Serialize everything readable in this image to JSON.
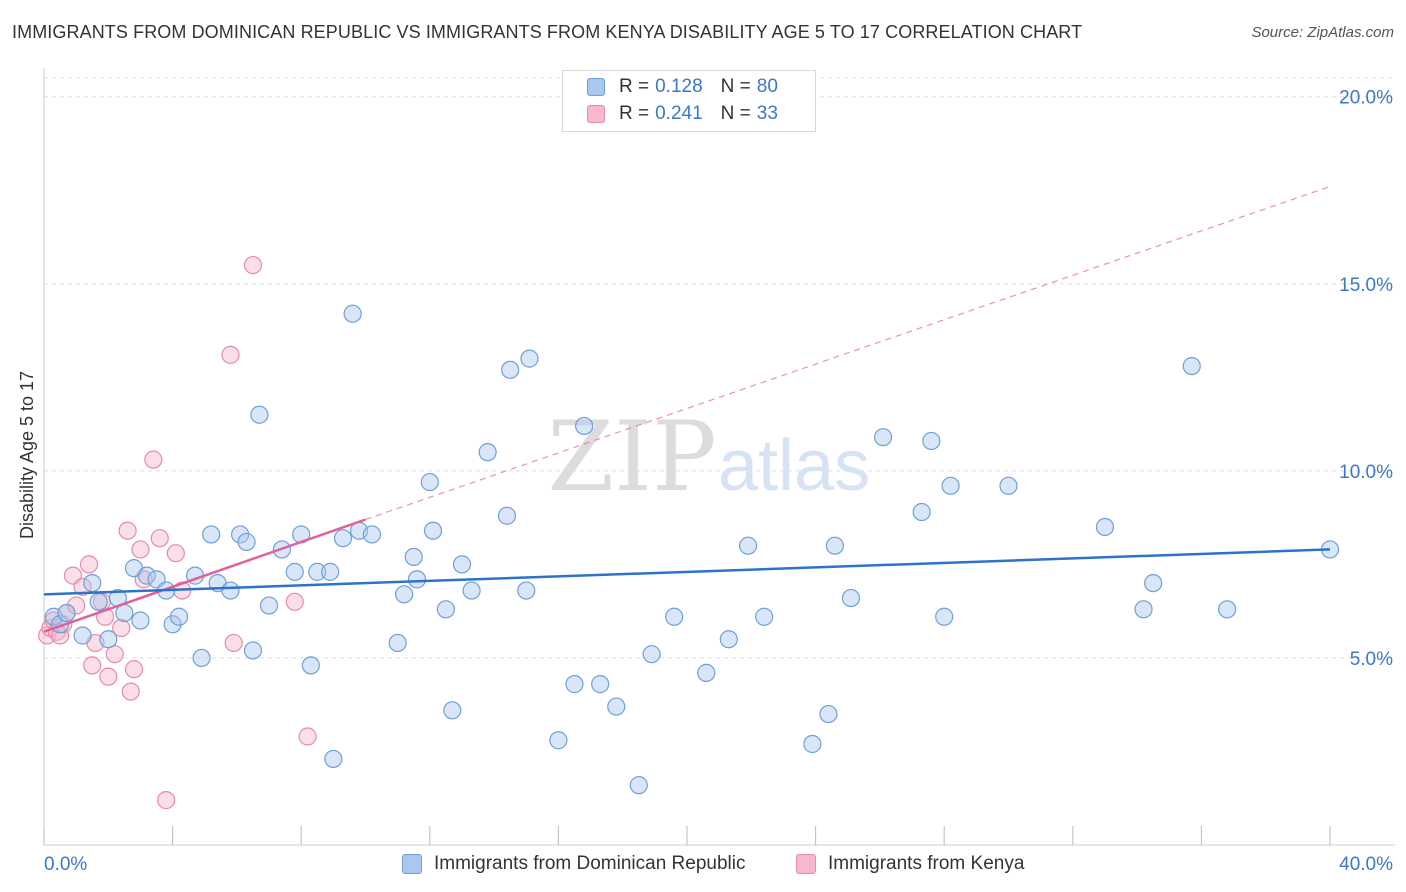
{
  "title": "IMMIGRANTS FROM DOMINICAN REPUBLIC VS IMMIGRANTS FROM KENYA DISABILITY AGE 5 TO 17 CORRELATION CHART",
  "source": "Source: ZipAtlas.com",
  "watermark": {
    "zip": "ZIP",
    "atlas": "atlas"
  },
  "colors": {
    "blue_fill": "#a9c8f0",
    "blue_stroke": "#6f9fd8",
    "blue_line": "#2d72cc",
    "pink_fill": "#f6b8cb",
    "pink_stroke": "#e88aa8",
    "pink_line": "#e0609a",
    "axis_text": "#3a78c9",
    "grid": "#dddddd"
  },
  "legend": {
    "rows": [
      {
        "r_label": "R =",
        "r_value": "0.128",
        "n_label": "N =",
        "n_value": "80"
      },
      {
        "r_label": "R =",
        "r_value": "0.241",
        "n_label": "N =",
        "n_value": "33"
      }
    ]
  },
  "chart_data": {
    "type": "scatter",
    "title": "IMMIGRANTS FROM DOMINICAN REPUBLIC VS IMMIGRANTS FROM KENYA DISABILITY AGE 5 TO 17 CORRELATION CHART",
    "xlabel": "",
    "ylabel": "Disability Age 5 to 17",
    "xlim": [
      0,
      40
    ],
    "ylim": [
      0,
      20.5
    ],
    "x_tick_labels": [
      "0.0%",
      "40.0%"
    ],
    "y_ticks": [
      5,
      10,
      15,
      20
    ],
    "y_tick_labels": [
      "5.0%",
      "10.0%",
      "15.0%",
      "20.0%"
    ],
    "grid": true,
    "series": [
      {
        "name": "Immigrants from Dominican Republic",
        "color": "blue",
        "R": 0.128,
        "N": 80,
        "trend": {
          "x": [
            0,
            40
          ],
          "y": [
            6.7,
            7.9
          ],
          "dashed_extension": false
        },
        "points": [
          [
            0.3,
            6.1
          ],
          [
            0.5,
            5.9
          ],
          [
            0.7,
            6.2
          ],
          [
            1.2,
            5.6
          ],
          [
            1.5,
            7.0
          ],
          [
            1.7,
            6.5
          ],
          [
            2.0,
            5.5
          ],
          [
            2.3,
            6.6
          ],
          [
            2.5,
            6.2
          ],
          [
            2.8,
            7.4
          ],
          [
            3.0,
            6.0
          ],
          [
            3.2,
            7.2
          ],
          [
            3.5,
            7.1
          ],
          [
            3.8,
            6.8
          ],
          [
            4.0,
            5.9
          ],
          [
            4.2,
            6.1
          ],
          [
            4.7,
            7.2
          ],
          [
            4.9,
            5.0
          ],
          [
            5.2,
            8.3
          ],
          [
            5.4,
            7.0
          ],
          [
            5.8,
            6.8
          ],
          [
            6.1,
            8.3
          ],
          [
            6.3,
            8.1
          ],
          [
            6.5,
            5.2
          ],
          [
            6.7,
            11.5
          ],
          [
            7.0,
            6.4
          ],
          [
            7.4,
            7.9
          ],
          [
            7.8,
            7.3
          ],
          [
            8.0,
            8.3
          ],
          [
            8.3,
            4.8
          ],
          [
            8.5,
            7.3
          ],
          [
            8.9,
            7.3
          ],
          [
            9.0,
            2.3
          ],
          [
            9.3,
            8.2
          ],
          [
            9.6,
            14.2
          ],
          [
            9.8,
            8.4
          ],
          [
            10.2,
            8.3
          ],
          [
            11.0,
            5.4
          ],
          [
            11.2,
            6.7
          ],
          [
            11.5,
            7.7
          ],
          [
            11.6,
            7.1
          ],
          [
            12.0,
            9.7
          ],
          [
            12.1,
            8.4
          ],
          [
            12.5,
            6.3
          ],
          [
            12.7,
            3.6
          ],
          [
            13.0,
            7.5
          ],
          [
            13.3,
            6.8
          ],
          [
            13.8,
            10.5
          ],
          [
            14.4,
            8.8
          ],
          [
            14.5,
            12.7
          ],
          [
            15.0,
            6.8
          ],
          [
            15.1,
            13.0
          ],
          [
            16.0,
            2.8
          ],
          [
            16.5,
            4.3
          ],
          [
            16.8,
            11.2
          ],
          [
            17.3,
            4.3
          ],
          [
            17.8,
            3.7
          ],
          [
            18.5,
            1.6
          ],
          [
            18.9,
            5.1
          ],
          [
            19.6,
            6.1
          ],
          [
            20.6,
            4.6
          ],
          [
            21.3,
            5.5
          ],
          [
            21.9,
            8.0
          ],
          [
            22.4,
            6.1
          ],
          [
            23.9,
            2.7
          ],
          [
            24.4,
            3.5
          ],
          [
            24.6,
            8.0
          ],
          [
            25.1,
            6.6
          ],
          [
            26.1,
            10.9
          ],
          [
            27.3,
            8.9
          ],
          [
            27.6,
            10.8
          ],
          [
            28.0,
            6.1
          ],
          [
            28.2,
            9.6
          ],
          [
            30.0,
            9.6
          ],
          [
            33.0,
            8.5
          ],
          [
            34.2,
            6.3
          ],
          [
            34.5,
            7.0
          ],
          [
            35.7,
            12.8
          ],
          [
            36.8,
            6.3
          ],
          [
            40.0,
            7.9
          ]
        ]
      },
      {
        "name": "Immigrants from Kenya",
        "color": "pink",
        "R": 0.241,
        "N": 33,
        "trend": {
          "x": [
            0,
            10.0
          ],
          "y": [
            5.7,
            8.7
          ],
          "dashed_extension_to": [
            40,
            17.6
          ]
        },
        "points": [
          [
            0.1,
            5.6
          ],
          [
            0.2,
            5.8
          ],
          [
            0.3,
            6.0
          ],
          [
            0.4,
            5.7
          ],
          [
            0.5,
            5.6
          ],
          [
            0.6,
            5.9
          ],
          [
            0.7,
            6.2
          ],
          [
            0.9,
            7.2
          ],
          [
            1.0,
            6.4
          ],
          [
            1.2,
            6.9
          ],
          [
            1.4,
            7.5
          ],
          [
            1.5,
            4.8
          ],
          [
            1.6,
            5.4
          ],
          [
            1.8,
            6.5
          ],
          [
            1.9,
            6.1
          ],
          [
            2.0,
            4.5
          ],
          [
            2.2,
            5.1
          ],
          [
            2.4,
            5.8
          ],
          [
            2.6,
            8.4
          ],
          [
            2.7,
            4.1
          ],
          [
            2.8,
            4.7
          ],
          [
            3.0,
            7.9
          ],
          [
            3.1,
            7.1
          ],
          [
            3.4,
            10.3
          ],
          [
            3.6,
            8.2
          ],
          [
            3.8,
            1.2
          ],
          [
            4.1,
            7.8
          ],
          [
            4.3,
            6.8
          ],
          [
            5.8,
            13.1
          ],
          [
            5.9,
            5.4
          ],
          [
            6.5,
            15.5
          ],
          [
            7.8,
            6.5
          ],
          [
            8.2,
            2.9
          ]
        ]
      }
    ]
  },
  "bottom_legend": {
    "items": [
      {
        "label": "Immigrants from Dominican Republic"
      },
      {
        "label": "Immigrants from Kenya"
      }
    ]
  }
}
